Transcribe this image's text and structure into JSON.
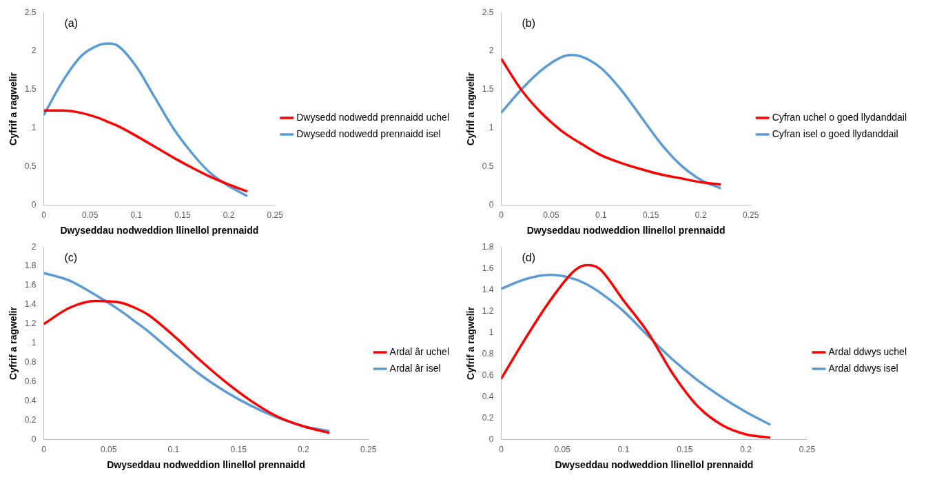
{
  "chart_data": [
    {
      "type": "line",
      "xlabel": "Dwyseddau nodweddion llinellol prennaidd",
      "ylabel": "Cyfrif a ragwelir",
      "annotations": [
        "(a)"
      ],
      "x": [
        0,
        0.02,
        0.04,
        0.06,
        0.07,
        0.08,
        0.1,
        0.12,
        0.14,
        0.16,
        0.18,
        0.2,
        0.22
      ],
      "xlim": [
        0,
        0.25
      ],
      "xticks": [
        0,
        0.05,
        0.1,
        0.15,
        0.2,
        0.25
      ],
      "ylim": [
        0,
        2.5
      ],
      "yticks": [
        0,
        0.5,
        1,
        1.5,
        2,
        2.5
      ],
      "grid": false,
      "legend": "right",
      "marker": "none",
      "line_style": "solid",
      "series": [
        {
          "name": "Dwysedd nodwedd prennaidd uchel",
          "color": "#ff0000",
          "values": [
            1.23,
            1.23,
            1.2,
            1.13,
            1.08,
            1.03,
            0.9,
            0.76,
            0.62,
            0.49,
            0.37,
            0.27,
            0.18
          ]
        },
        {
          "name": "Dwysedd nodwedd prennaidd isel",
          "color": "#5b9bd5",
          "values": [
            1.17,
            1.6,
            1.93,
            2.08,
            2.1,
            2.07,
            1.8,
            1.4,
            1.0,
            0.68,
            0.42,
            0.25,
            0.12
          ]
        }
      ]
    },
    {
      "type": "line",
      "xlabel": "Dwyseddau nodweddion llinellol prennaidd",
      "ylabel": "Cyfrif a ragwelir",
      "annotations": [
        "(b)"
      ],
      "x": [
        0,
        0.02,
        0.04,
        0.06,
        0.07,
        0.08,
        0.1,
        0.12,
        0.14,
        0.16,
        0.18,
        0.2,
        0.22
      ],
      "xlim": [
        0,
        0.25
      ],
      "xticks": [
        0,
        0.05,
        0.1,
        0.15,
        0.2,
        0.25
      ],
      "ylim": [
        0,
        2.5
      ],
      "yticks": [
        0,
        0.5,
        1,
        1.5,
        2,
        2.5
      ],
      "grid": false,
      "legend": "right",
      "marker": "none",
      "line_style": "solid",
      "series": [
        {
          "name": "Cyfran uchel o goed llydanddail",
          "color": "#ff0000",
          "values": [
            1.9,
            1.5,
            1.2,
            0.97,
            0.88,
            0.8,
            0.65,
            0.55,
            0.47,
            0.4,
            0.35,
            0.3,
            0.27
          ]
        },
        {
          "name": "Cyfran isel o goed llydanddail",
          "color": "#5b9bd5",
          "values": [
            1.2,
            1.5,
            1.75,
            1.92,
            1.95,
            1.93,
            1.78,
            1.5,
            1.15,
            0.8,
            0.52,
            0.33,
            0.22
          ]
        }
      ]
    },
    {
      "type": "line",
      "xlabel": "Dwyseddau nodweddion llinellol prennaidd",
      "ylabel": "Cyfrif a ragwelir",
      "annotations": [
        "(c)"
      ],
      "x": [
        0,
        0.02,
        0.04,
        0.06,
        0.07,
        0.08,
        0.1,
        0.12,
        0.14,
        0.16,
        0.18,
        0.2,
        0.22
      ],
      "xlim": [
        0,
        0.25
      ],
      "xticks": [
        0,
        0.05,
        0.1,
        0.15,
        0.2,
        0.25
      ],
      "ylim": [
        0,
        2
      ],
      "yticks": [
        0,
        0.2,
        0.4,
        0.6,
        0.8,
        1,
        1.2,
        1.4,
        1.6,
        1.8,
        2
      ],
      "grid": false,
      "legend": "right",
      "marker": "none",
      "line_style": "solid",
      "series": [
        {
          "name": "Ardal âr uchel",
          "color": "#ff0000",
          "values": [
            1.2,
            1.37,
            1.44,
            1.42,
            1.37,
            1.3,
            1.08,
            0.83,
            0.6,
            0.4,
            0.24,
            0.14,
            0.07
          ]
        },
        {
          "name": "Ardal âr isel",
          "color": "#5b9bd5",
          "values": [
            1.73,
            1.65,
            1.5,
            1.33,
            1.23,
            1.13,
            0.9,
            0.68,
            0.5,
            0.35,
            0.23,
            0.14,
            0.09
          ]
        }
      ]
    },
    {
      "type": "line",
      "xlabel": "Dwyseddau nodweddion llinellol prennaidd",
      "ylabel": "Cyfrif a ragwelir",
      "annotations": [
        "(d)"
      ],
      "x": [
        0,
        0.02,
        0.04,
        0.06,
        0.07,
        0.08,
        0.1,
        0.12,
        0.14,
        0.16,
        0.18,
        0.2,
        0.22
      ],
      "xlim": [
        0,
        0.25
      ],
      "xticks": [
        0,
        0.05,
        0.1,
        0.15,
        0.2,
        0.25
      ],
      "ylim": [
        0,
        1.8
      ],
      "yticks": [
        0,
        0.2,
        0.4,
        0.6,
        0.8,
        1,
        1.2,
        1.4,
        1.6,
        1.8
      ],
      "grid": false,
      "legend": "right",
      "marker": "none",
      "line_style": "solid",
      "series": [
        {
          "name": "Ardal ddwys uchel",
          "color": "#ff0000",
          "values": [
            0.57,
            0.95,
            1.3,
            1.58,
            1.63,
            1.6,
            1.3,
            1.0,
            0.62,
            0.32,
            0.14,
            0.05,
            0.02
          ]
        },
        {
          "name": "Ardal ddwys isel",
          "color": "#5b9bd5",
          "values": [
            1.41,
            1.5,
            1.54,
            1.5,
            1.45,
            1.38,
            1.2,
            0.97,
            0.75,
            0.56,
            0.4,
            0.26,
            0.14
          ]
        }
      ]
    }
  ]
}
